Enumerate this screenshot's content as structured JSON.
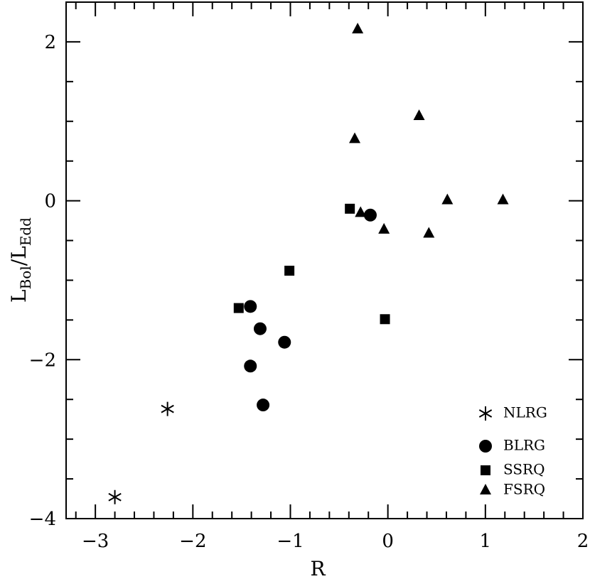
{
  "chart_data": {
    "type": "scatter",
    "xlabel": "R",
    "ylabel": {
      "main1": "L",
      "sub1": "Bol",
      "main2": "/L",
      "sub2": "Edd"
    },
    "xlim": [
      -3.3,
      2
    ],
    "ylim": [
      -4,
      2.5
    ],
    "xticks": [
      {
        "value": -3,
        "label": "−3"
      },
      {
        "value": -2,
        "label": "−2"
      },
      {
        "value": -1,
        "label": "−1"
      },
      0,
      1,
      2
    ],
    "yticks": [
      {
        "value": -4,
        "label": "−4"
      },
      {
        "value": -2,
        "label": "−2"
      },
      0,
      2
    ],
    "minor_xticks": [
      -3.2,
      -2.8,
      -2.6,
      -2.4,
      -2.2,
      -1.8,
      -1.6,
      -1.4,
      -1.2,
      -0.8,
      -0.6,
      -0.4,
      -0.2,
      0.2,
      0.4,
      0.6,
      0.8,
      1.2,
      1.4,
      1.6,
      1.8
    ],
    "minor_yticks": [
      -3.5,
      -3,
      -2.5,
      -1.5,
      -1,
      -0.5,
      0.5,
      1,
      1.5
    ],
    "legend": "lower right",
    "series": [
      {
        "name": "NLRG",
        "color": "#000000",
        "marker": "asterisk",
        "x": [
          -2.26,
          -2.8
        ],
        "values": [
          -2.62,
          -3.73
        ]
      },
      {
        "name": "BLRG",
        "color": "#000000",
        "marker": "circle",
        "x": [
          -1.41,
          -1.31,
          -1.06,
          -1.41,
          -1.28,
          -0.18
        ],
        "values": [
          -1.33,
          -1.61,
          -1.78,
          -2.08,
          -2.57,
          -0.18
        ]
      },
      {
        "name": "SSRQ",
        "color": "#000000",
        "marker": "square",
        "x": [
          -1.53,
          -1.01,
          -0.39,
          -0.03
        ],
        "values": [
          -1.35,
          -0.88,
          -0.1,
          -1.49
        ]
      },
      {
        "name": "FSRQ",
        "color": "#000000",
        "marker": "triangle",
        "x": [
          -0.31,
          0.32,
          -0.34,
          -0.28,
          -0.04,
          0.42,
          0.61,
          1.18
        ],
        "values": [
          2.16,
          1.07,
          0.78,
          -0.15,
          -0.36,
          -0.41,
          0.01,
          0.01
        ]
      }
    ]
  }
}
